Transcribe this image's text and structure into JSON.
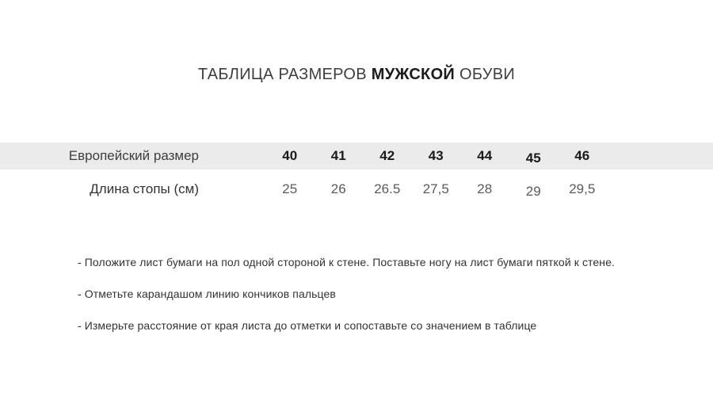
{
  "title": {
    "prefix": "ТАБЛИЦА РАЗМЕРОВ",
    "highlight": "МУЖСКОЙ",
    "suffix": "ОБУВИ"
  },
  "table": {
    "rows": [
      {
        "label": "Европейский размер",
        "values": [
          "40",
          "41",
          "42",
          "43",
          "44",
          "45",
          "46"
        ]
      },
      {
        "label": "Длина стопы (см)",
        "values": [
          "25",
          "26",
          "26.5",
          "27,5",
          "28",
          "29",
          "29,5"
        ]
      }
    ]
  },
  "instructions": [
    "- Положите лист бумаги на пол одной стороной к стене. Поставьте ногу на лист бумаги пяткой к стене.",
    "- Отметьте карандашом линию кончиков пальцев",
    "- Измерьте расстояние от края листа до отметки и сопоставьте со значением в таблице"
  ],
  "colors": {
    "header_band": "#ebebeb",
    "header_number_text": "#1a1a1a",
    "body_number_text": "#5a5a5a",
    "label_text": "#3d3d3d",
    "title_text": "#3e3e3e",
    "title_highlight_text": "#1b1b1b",
    "instruction_text": "#333333",
    "background": "#ffffff"
  }
}
